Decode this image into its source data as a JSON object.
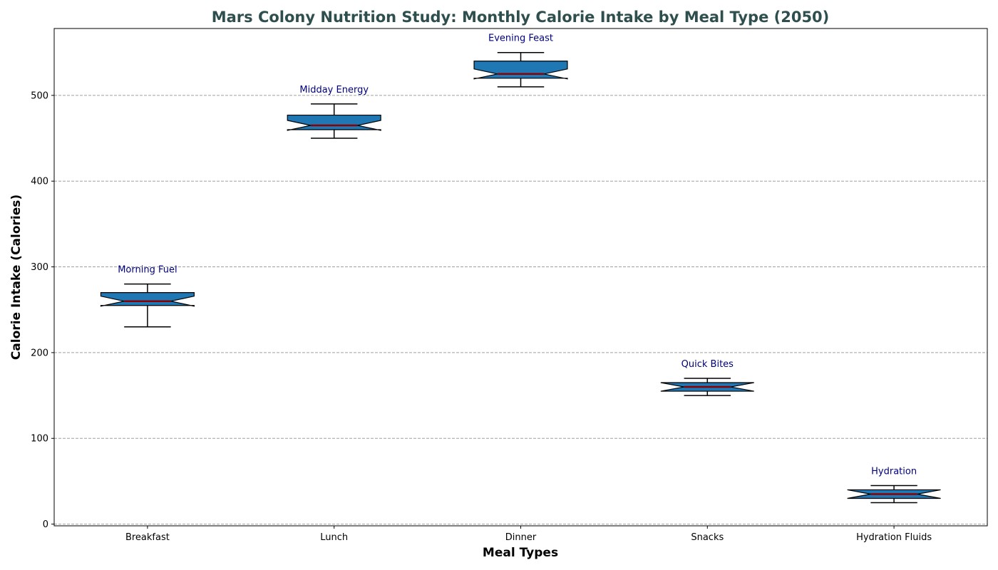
{
  "chart_data": {
    "type": "box",
    "title": "Mars Colony Nutrition Study: Monthly Calorie Intake by Meal Type (2050)",
    "xlabel": "Meal Types",
    "ylabel": "Calorie Intake (Calories)",
    "ylim": [
      -2,
      578
    ],
    "yticks": [
      0,
      100,
      200,
      300,
      400,
      500
    ],
    "grid": "horizontal dashed",
    "notched": true,
    "box_color": "#1f77b4",
    "median_color": "#8b0000",
    "annotation_color": "#000080",
    "title_color": "#2f4f4f",
    "categories": [
      "Breakfast",
      "Lunch",
      "Dinner",
      "Snacks",
      "Hydration Fluids"
    ],
    "boxes": [
      {
        "min": 230,
        "q1": 255,
        "median": 260,
        "q3": 270,
        "max": 280,
        "annotation": "Morning Fuel"
      },
      {
        "min": 450,
        "q1": 460,
        "median": 465,
        "q3": 477,
        "max": 490,
        "annotation": "Midday Energy"
      },
      {
        "min": 510,
        "q1": 520,
        "median": 525,
        "q3": 540,
        "max": 550,
        "annotation": "Evening Feast"
      },
      {
        "min": 150,
        "q1": 155,
        "median": 160,
        "q3": 165,
        "max": 170,
        "annotation": "Quick Bites"
      },
      {
        "min": 25,
        "q1": 30,
        "median": 35,
        "q3": 40,
        "max": 45,
        "annotation": "Hydration"
      }
    ]
  }
}
